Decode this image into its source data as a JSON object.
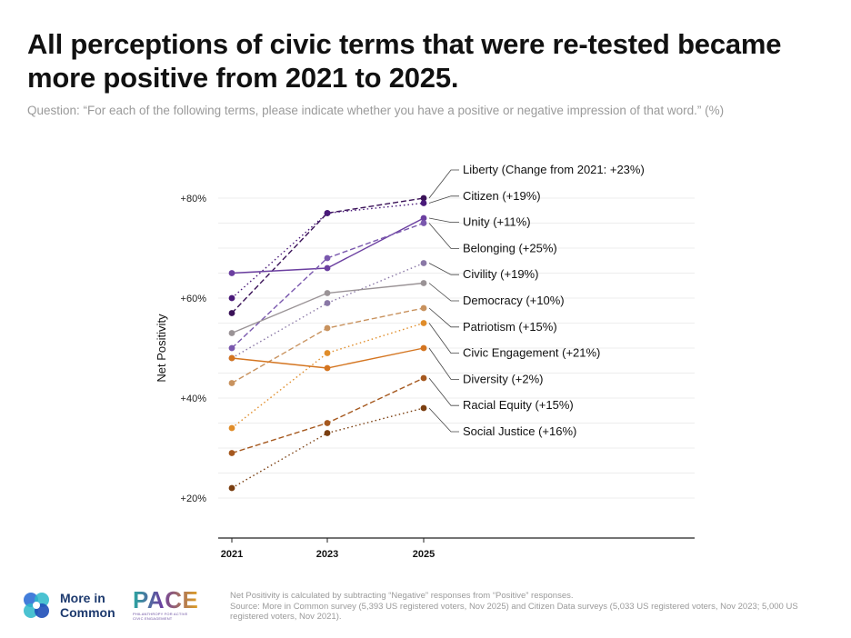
{
  "header": {
    "title": "All perceptions of civic terms that were re-tested became more positive from 2021 to 2025.",
    "question": "Question: “For each of the following terms, please indicate whether you have a positive or negative impression of that word.” (%)"
  },
  "chart_data": {
    "type": "line",
    "title": "All perceptions of civic terms that were re-tested became more positive from 2021 to 2025.",
    "ylabel": "Net Positivity",
    "xlabel": "",
    "x": [
      "2021",
      "2023",
      "2025"
    ],
    "yticks": [
      "+20%",
      "+40%",
      "+60%",
      "+80%"
    ],
    "ylim": [
      14,
      88
    ],
    "grid": true,
    "series": [
      {
        "name": "Liberty",
        "label": "Liberty (Change from 2021: +23%)",
        "values": [
          57,
          77,
          80
        ],
        "color": "#3a1258",
        "dash": "dashed"
      },
      {
        "name": "Citizen",
        "label": "Citizen (+19%)",
        "values": [
          60,
          77,
          79
        ],
        "color": "#4a1a7a",
        "dash": "dotted"
      },
      {
        "name": "Unity",
        "label": "Unity (+11%)",
        "values": [
          65,
          66,
          76
        ],
        "color": "#6b3fa0",
        "dash": "solid"
      },
      {
        "name": "Belonging",
        "label": "Belonging (+25%)",
        "values": [
          50,
          68,
          75
        ],
        "color": "#7a58ae",
        "dash": "dashed"
      },
      {
        "name": "Civility",
        "label": "Civility (+19%)",
        "values": [
          48,
          59,
          67
        ],
        "color": "#8a78a6",
        "dash": "dotted"
      },
      {
        "name": "Democracy",
        "label": "Democracy (+10%)",
        "values": [
          53,
          61,
          63
        ],
        "color": "#9a9396",
        "dash": "solid"
      },
      {
        "name": "Patriotism",
        "label": "Patriotism (+15%)",
        "values": [
          43,
          54,
          58
        ],
        "color": "#c8925e",
        "dash": "dashed"
      },
      {
        "name": "Civic Engagement",
        "label": "Civic Engagement (+21%)",
        "values": [
          34,
          49,
          55
        ],
        "color": "#e08d2a",
        "dash": "dotted"
      },
      {
        "name": "Diversity",
        "label": "Diversity (+2%)",
        "values": [
          48,
          46,
          50
        ],
        "color": "#d47520",
        "dash": "solid"
      },
      {
        "name": "Racial Equity",
        "label": "Racial Equity (+15%)",
        "values": [
          29,
          35,
          44
        ],
        "color": "#a5581e",
        "dash": "dashed"
      },
      {
        "name": "Social Justice",
        "label": "Social Justice (+16%)",
        "values": [
          22,
          33,
          38
        ],
        "color": "#7a3e10",
        "dash": "dotted"
      }
    ]
  },
  "footer": {
    "note": "Net Positivity is calculated by subtracting “Negative” responses from “Positive” responses.",
    "source": "Source: More in Common survey (5,393 US registered voters, Nov 2025) and Citizen Data surveys (5,033 US registered voters, Nov 2023; 5,000 US registered voters, Nov 2021).",
    "logo_mic_line1": "More in",
    "logo_mic_line2": "Common",
    "logo_pace_word": "PACE",
    "logo_pace_sub": "PHILANTHROPY FOR ACTIVE CIVIC ENGAGEMENT"
  }
}
